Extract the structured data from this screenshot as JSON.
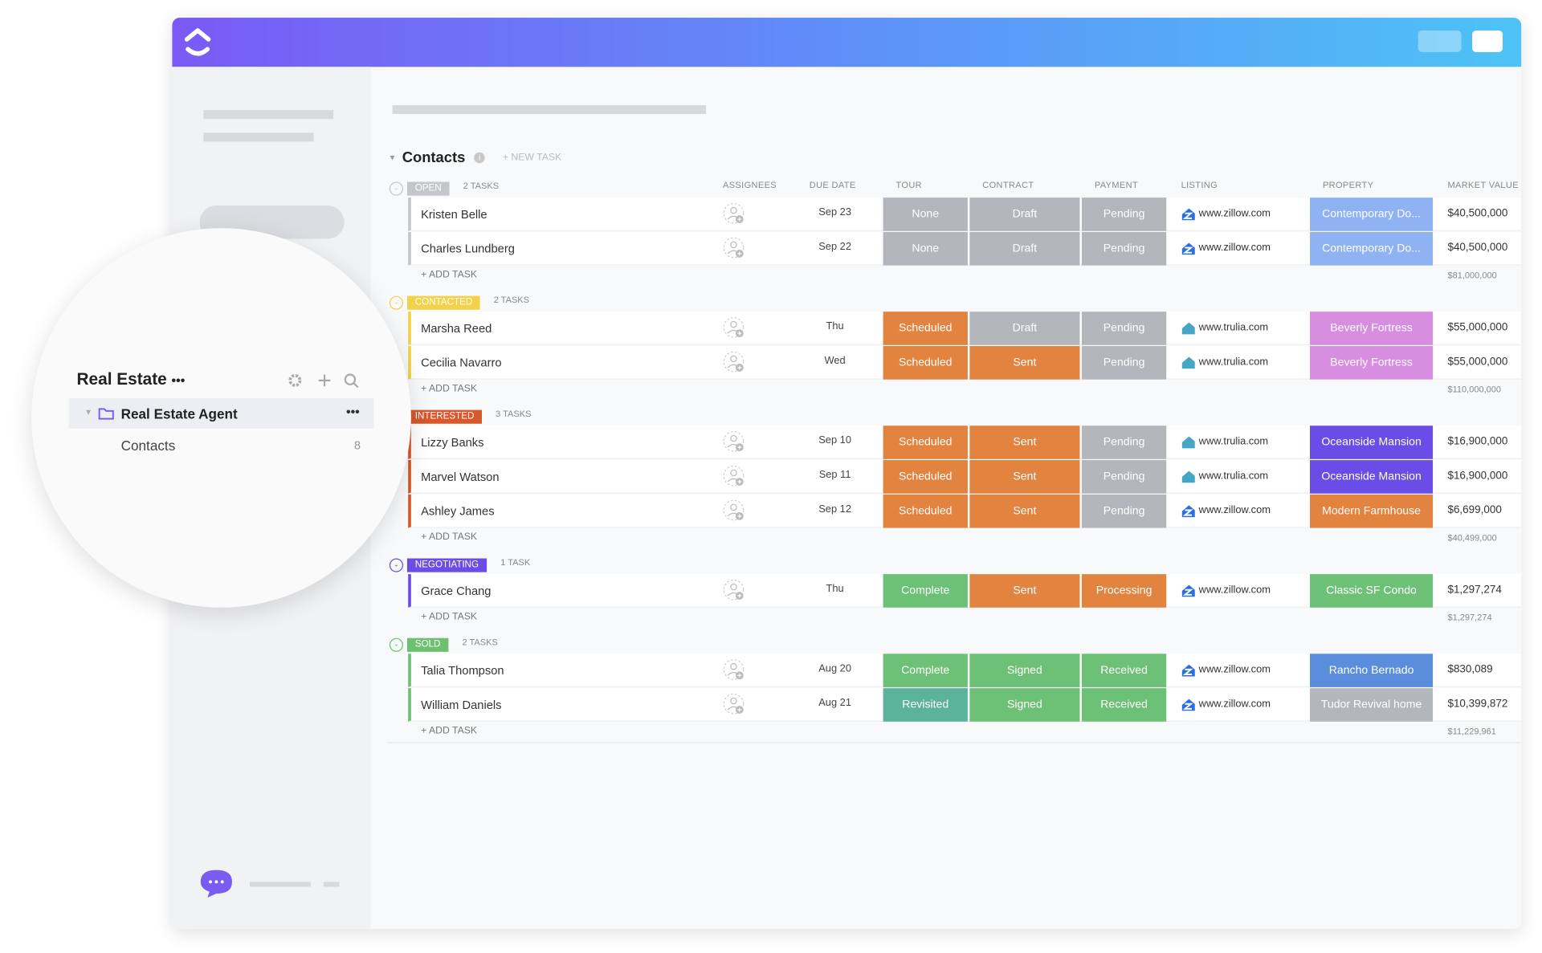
{
  "sidebar": {
    "space_title": "Real Estate",
    "folder": "Real Estate Agent",
    "list": "Contacts",
    "list_count": 8
  },
  "list": {
    "title": "Contacts",
    "new_task": "+ NEW TASK",
    "add_task": "+ ADD TASK",
    "columns": [
      "ASSIGNEES",
      "DUE DATE",
      "TOUR",
      "CONTRACT",
      "PAYMENT",
      "LISTING",
      "PROPERTY",
      "MARKET VALUE"
    ],
    "groups": [
      {
        "status": "OPEN",
        "color": "#c4c6c9",
        "count": "2 TASKS",
        "total": "$81,000,000",
        "rows": [
          {
            "name": "Kristen Belle",
            "due": "Sep 23",
            "tour": "None",
            "contract": "Draft",
            "payment": "Pending",
            "listing": "www.zillow.com",
            "property": "Contemporary Do...",
            "value": "$40,500,000"
          },
          {
            "name": "Charles Lundberg",
            "due": "Sep 22",
            "tour": "None",
            "contract": "Draft",
            "payment": "Pending",
            "listing": "www.zillow.com",
            "property": "Contemporary Do...",
            "value": "$40,500,000"
          }
        ]
      },
      {
        "status": "CONTACTED",
        "color": "#f2d14b",
        "count": "2 TASKS",
        "total": "$110,000,000",
        "rows": [
          {
            "name": "Marsha Reed",
            "due": "Thu",
            "tour": "Scheduled",
            "contract": "Draft",
            "payment": "Pending",
            "listing": "www.trulia.com",
            "property": "Beverly Fortress",
            "value": "$55,000,000"
          },
          {
            "name": "Cecilia Navarro",
            "due": "Wed",
            "tour": "Scheduled",
            "contract": "Sent",
            "payment": "Pending",
            "listing": "www.trulia.com",
            "property": "Beverly Fortress",
            "value": "$55,000,000"
          }
        ]
      },
      {
        "status": "INTERESTED",
        "color": "#d6582c",
        "count": "3 TASKS",
        "total": "$40,499,000",
        "rows": [
          {
            "name": "Lizzy Banks",
            "due": "Sep 10",
            "tour": "Scheduled",
            "contract": "Sent",
            "payment": "Pending",
            "listing": "www.trulia.com",
            "property": "Oceanside Mansion",
            "value": "$16,900,000"
          },
          {
            "name": "Marvel Watson",
            "due": "Sep 11",
            "tour": "Scheduled",
            "contract": "Sent",
            "payment": "Pending",
            "listing": "www.trulia.com",
            "property": "Oceanside Mansion",
            "value": "$16,900,000"
          },
          {
            "name": "Ashley James",
            "due": "Sep 12",
            "tour": "Scheduled",
            "contract": "Sent",
            "payment": "Pending",
            "listing": "www.zillow.com",
            "property": "Modern Farmhouse",
            "value": "$6,699,000"
          }
        ]
      },
      {
        "status": "NEGOTIATING",
        "color": "#6b4de6",
        "count": "1 TASK",
        "total": "$1,297,274",
        "rows": [
          {
            "name": "Grace Chang",
            "due": "Thu",
            "tour": "Complete",
            "contract": "Sent",
            "payment": "Processing",
            "listing": "www.zillow.com",
            "property": "Classic SF Condo",
            "value": "$1,297,274"
          }
        ]
      },
      {
        "status": "SOLD",
        "color": "#6cc070",
        "count": "2 TASKS",
        "total": "$11,229,961",
        "rows": [
          {
            "name": "Talia Thompson",
            "due": "Aug 20",
            "tour": "Complete",
            "contract": "Signed",
            "payment": "Received",
            "listing": "www.zillow.com",
            "property": "Rancho Bernado",
            "value": "$830,089"
          },
          {
            "name": "William Daniels",
            "due": "Aug 21",
            "tour": "Revisited",
            "contract": "Signed",
            "payment": "Received",
            "listing": "www.zillow.com",
            "property": "Tudor Revival home",
            "value": "$10,399,872"
          }
        ]
      }
    ]
  },
  "tag_colors": {
    "None": "#b3b6ba",
    "Draft": "#b3b6ba",
    "Pending": "#b3b6ba",
    "Scheduled": "#e2833f",
    "Sent": "#e2833f",
    "Processing": "#e2833f",
    "Complete": "#6cc177",
    "Signed": "#6cc177",
    "Received": "#6cc177",
    "Revisited": "#5bb39a",
    "Contemporary Do...": "#8fb2f2",
    "Beverly Fortress": "#d78ee0",
    "Oceanside Mansion": "#6a4de6",
    "Modern Farmhouse": "#e2833f",
    "Classic SF Condo": "#6cc177",
    "Rancho Bernado": "#5a8ddc",
    "Tudor Revival home": "#b3b6ba"
  }
}
